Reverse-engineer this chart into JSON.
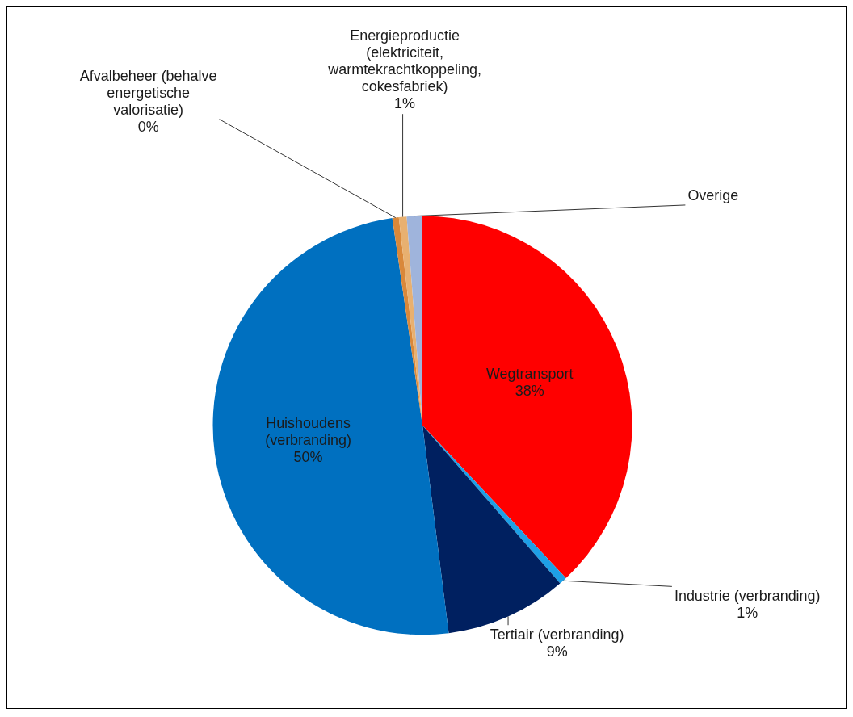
{
  "chart_data": {
    "type": "pie",
    "categories": [
      "Wegtransport",
      "Industrie (verbranding)",
      "Tertiair (verbranding)",
      "Huishoudens (verbranding)",
      "Afvalbeheer (behalve energetische valorisatie)",
      "Energieproductie (elektriciteit, warmtekrachtkoppeling, cokesfabriek)",
      "Overige"
    ],
    "values": [
      38,
      0.6,
      9.4,
      49.7,
      0.5,
      0.6,
      1.2
    ],
    "value_labels": [
      "38%",
      "1%",
      "9%",
      "50%",
      "0%",
      "1%",
      null
    ],
    "colors": [
      "#ff0000",
      "#1ea0e6",
      "#002060",
      "#0070c0",
      "#d9883a",
      "#e8b070",
      "#9fb4dc"
    ],
    "legend": false
  }
}
